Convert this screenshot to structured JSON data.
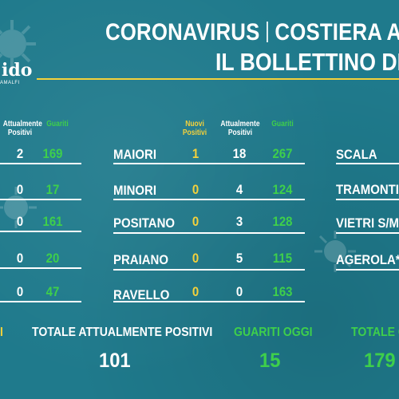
{
  "title": {
    "line1_left": "CORONAVIRUS",
    "line1_right": "COSTIERA A",
    "line2": "IL BOLLETTINO DE"
  },
  "logo": {
    "main": "ido",
    "sub": "AMALFI"
  },
  "left_panel": {
    "headers": {
      "attualmente": "Attualmente\nPositivi",
      "guariti": "Guariti"
    },
    "rows": [
      {
        "attualmente": "2",
        "guariti": "169"
      },
      {
        "attualmente": "0",
        "guariti": "17"
      },
      {
        "attualmente": "0",
        "guariti": "161"
      },
      {
        "attualmente": "0",
        "guariti": "20"
      },
      {
        "attualmente": "0",
        "guariti": "47"
      }
    ]
  },
  "middle_panel": {
    "headers": {
      "nuovi": "Nuovi\nPositivi",
      "attualmente": "Attualmente\nPositivi",
      "guariti": "Guariti"
    },
    "rows": [
      {
        "name": "MAIORI",
        "nuovi": "1",
        "attualmente": "18",
        "guariti": "267"
      },
      {
        "name": "MINORI",
        "nuovi": "0",
        "attualmente": "4",
        "guariti": "124"
      },
      {
        "name": "POSITANO",
        "nuovi": "0",
        "attualmente": "3",
        "guariti": "128"
      },
      {
        "name": "PRAIANO",
        "nuovi": "0",
        "attualmente": "5",
        "guariti": "115"
      },
      {
        "name": "RAVELLO",
        "nuovi": "0",
        "attualmente": "0",
        "guariti": "163"
      }
    ]
  },
  "right_panel": {
    "rows": [
      {
        "name": "SCALA"
      },
      {
        "name": "TRAMONTI"
      },
      {
        "name": "VIETRI S/M"
      },
      {
        "name": "AGEROLA*"
      }
    ]
  },
  "footer": {
    "left_fragment": "I",
    "totale_attualmente_label": "TOTALE ATTUALMENTE POSITIVI",
    "totale_attualmente_value": "101",
    "guariti_oggi_label": "GUARITI OGGI",
    "guariti_oggi_value": "15",
    "totale_guariti_label": "TOTALE G",
    "totale_guariti_value": "179"
  },
  "colors": {
    "background": "#1f7a8c",
    "accent_yellow": "#f4d13b",
    "accent_green": "#3ecf4b",
    "text": "#ffffff"
  }
}
